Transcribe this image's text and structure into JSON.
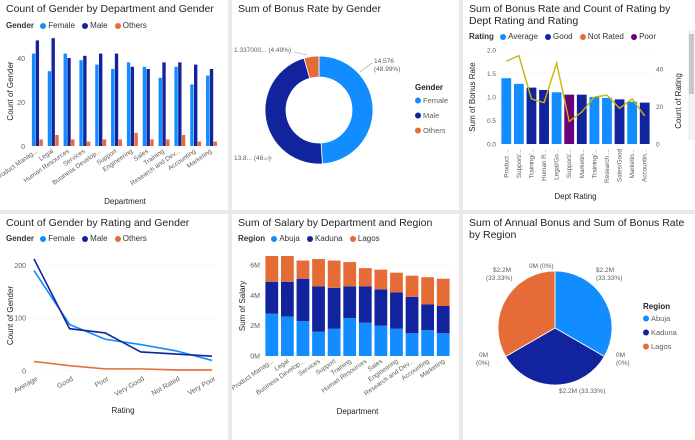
{
  "colors": {
    "female": "#118dff",
    "male": "#12239e",
    "others": "#e66c37",
    "average": "#118dff",
    "good": "#12239e",
    "not_rated": "#e66c37",
    "poor": "#6b007b",
    "line": "#c7b700",
    "abuja": "#118dff",
    "kaduna": "#12239e",
    "lagos": "#e66c37"
  },
  "chart_data": [
    {
      "id": "c1",
      "type": "bar",
      "title": "Count of Gender by Department and Gender",
      "legend_title": "Gender",
      "categories": [
        "Product Manag...",
        "Legal",
        "Human Resources",
        "Services",
        "Business Develop...",
        "Support",
        "Engineering",
        "Sales",
        "Training",
        "Research and Dev...",
        "Accounting",
        "Marketing"
      ],
      "series": [
        {
          "name": "Female",
          "color": "#118dff",
          "values": [
            42,
            34,
            42,
            39,
            37,
            35,
            38,
            36,
            31,
            36,
            28,
            32
          ]
        },
        {
          "name": "Male",
          "color": "#12239e",
          "values": [
            48,
            49,
            40,
            41,
            42,
            42,
            36,
            35,
            38,
            38,
            37,
            35
          ]
        },
        {
          "name": "Others",
          "color": "#e66c37",
          "values": [
            3,
            5,
            3,
            2,
            3,
            3,
            6,
            3,
            3,
            5,
            2,
            2
          ]
        }
      ],
      "xlabel": "Department",
      "ylabel": "Count of Gender",
      "ylim": [
        0,
        50
      ],
      "yticks": [
        0,
        20,
        40
      ],
      "grid": false,
      "legend": "top-left"
    },
    {
      "id": "c2",
      "type": "pie",
      "title": "Sum of Bonus Rate by Gender",
      "legend_title": "Gender",
      "legend": "right",
      "slices": [
        {
          "name": "Female",
          "value": 14.576,
          "pct": "48.99%",
          "label1": "14.576",
          "label2": "(48.99%)",
          "color": "#118dff"
        },
        {
          "name": "Male",
          "value": 13.84,
          "pct": "46.5%",
          "label1": "13.8...",
          "label2": "(46...)",
          "color": "#12239e"
        },
        {
          "name": "Others",
          "value": 1.337,
          "pct": "4.49%",
          "label1": "1.337000...",
          "label2": "(4.49%)",
          "color": "#e66c37"
        }
      ]
    },
    {
      "id": "c3",
      "type": "bar",
      "title": "Sum of Bonus Rate and Count of Rating by Dept Rating and Rating",
      "legend_title": "Rating",
      "legend_items": [
        {
          "name": "Average",
          "color": "#118dff"
        },
        {
          "name": "Good",
          "color": "#12239e"
        },
        {
          "name": "Not Rated",
          "color": "#e66c37"
        },
        {
          "name": "Poor",
          "color": "#6b007b"
        }
      ],
      "categories": [
        "Product ...",
        "Support/...",
        "Training/...",
        "Human R...",
        "Legal/Go...",
        "Support/...",
        "Marketin...",
        "Training/...",
        "Research ...",
        "Sales/Good",
        "Marketin...",
        "Accountin..."
      ],
      "bar_values": [
        1.4,
        1.28,
        1.2,
        1.15,
        1.1,
        1.05,
        1.05,
        1.0,
        0.98,
        0.95,
        0.9,
        0.88
      ],
      "bar_colors": [
        "#118dff",
        "#118dff",
        "#12239e",
        "#12239e",
        "#118dff",
        "#6b007b",
        "#12239e",
        "#118dff",
        "#118dff",
        "#12239e",
        "#118dff",
        "#12239e"
      ],
      "line_values": [
        44,
        47,
        24,
        22,
        43,
        12,
        17,
        25,
        26,
        19,
        24,
        15
      ],
      "xlabel": "Dept Rating",
      "ylabel": "Sum of Bonus Rate",
      "y2label": "Count of Rating",
      "ylim": [
        0,
        2.0
      ],
      "yticks": [
        0.0,
        0.5,
        1.0,
        1.5,
        2.0
      ],
      "y2lim": [
        0,
        50
      ],
      "y2ticks": [
        0,
        20,
        40
      ],
      "legend": "top-left"
    },
    {
      "id": "c4",
      "type": "line",
      "title": "Count of Gender by Rating and Gender",
      "legend_title": "Gender",
      "categories": [
        "Average",
        "Good",
        "Poor",
        "Very Good",
        "Not Rated",
        "Very Poor"
      ],
      "series": [
        {
          "name": "Female",
          "color": "#118dff",
          "values": [
            190,
            88,
            60,
            50,
            38,
            20
          ]
        },
        {
          "name": "Male",
          "color": "#12239e",
          "values": [
            212,
            80,
            72,
            36,
            32,
            28
          ]
        },
        {
          "name": "Others",
          "color": "#e66c37",
          "values": [
            18,
            10,
            4,
            4,
            2,
            2
          ]
        }
      ],
      "xlabel": "Rating",
      "ylabel": "Count of Gender",
      "ylim": [
        0,
        210
      ],
      "yticks": [
        0,
        100,
        200
      ],
      "legend": "top-left"
    },
    {
      "id": "c5",
      "type": "bar",
      "stacked": true,
      "title": "Sum of Salary by Department and Region",
      "legend_title": "Region",
      "categories": [
        "Product Manag...",
        "Legal",
        "Business Develop...",
        "Services",
        "Support",
        "Training",
        "Human Resources",
        "Sales",
        "Engineering",
        "Research and Dev...",
        "Accounting",
        "Marketing"
      ],
      "series": [
        {
          "name": "Abuja",
          "color": "#118dff",
          "values": [
            2.8,
            2.6,
            2.3,
            1.6,
            1.8,
            2.5,
            2.2,
            2.0,
            1.8,
            1.5,
            1.7,
            1.5
          ]
        },
        {
          "name": "Kaduna",
          "color": "#12239e",
          "values": [
            2.1,
            2.3,
            2.8,
            3.0,
            2.7,
            2.1,
            2.4,
            2.4,
            2.4,
            2.4,
            1.7,
            1.8
          ]
        },
        {
          "name": "Lagos",
          "color": "#e66c37",
          "values": [
            1.7,
            1.7,
            1.2,
            1.8,
            1.8,
            1.6,
            1.2,
            1.3,
            1.3,
            1.4,
            1.8,
            1.8
          ]
        }
      ],
      "xlabel": "Department",
      "ylabel": "Sum of Salary",
      "ylim": [
        0,
        6.6
      ],
      "yticks": [
        "0M",
        "2M",
        "4M",
        "6M"
      ],
      "ytick_values": [
        0,
        2,
        4,
        6
      ],
      "legend": "top-left"
    },
    {
      "id": "c6",
      "type": "pie",
      "title": "Sum of Annual Bonus and Sum of Bonus Rate by Region",
      "legend_title": "Region",
      "legend": "right",
      "slices": [
        {
          "name": "Abuja",
          "value": 33.33,
          "color": "#118dff",
          "label1": "$2.2M",
          "label2": "(33.33%)"
        },
        {
          "name": "Kaduna",
          "value": 33.33,
          "color": "#12239e",
          "label1": "$2.2M (33.33%)",
          "label2": ""
        },
        {
          "name": "Lagos",
          "value": 33.33,
          "color": "#e66c37",
          "label1": "$2.2M",
          "label2": "(33.33%)"
        }
      ],
      "zero_labels": [
        {
          "label1": "0M (0%)",
          "label2": ""
        },
        {
          "label1": "0M",
          "label2": "(0%)"
        },
        {
          "label1": "0M",
          "label2": "(0%)"
        }
      ]
    }
  ]
}
